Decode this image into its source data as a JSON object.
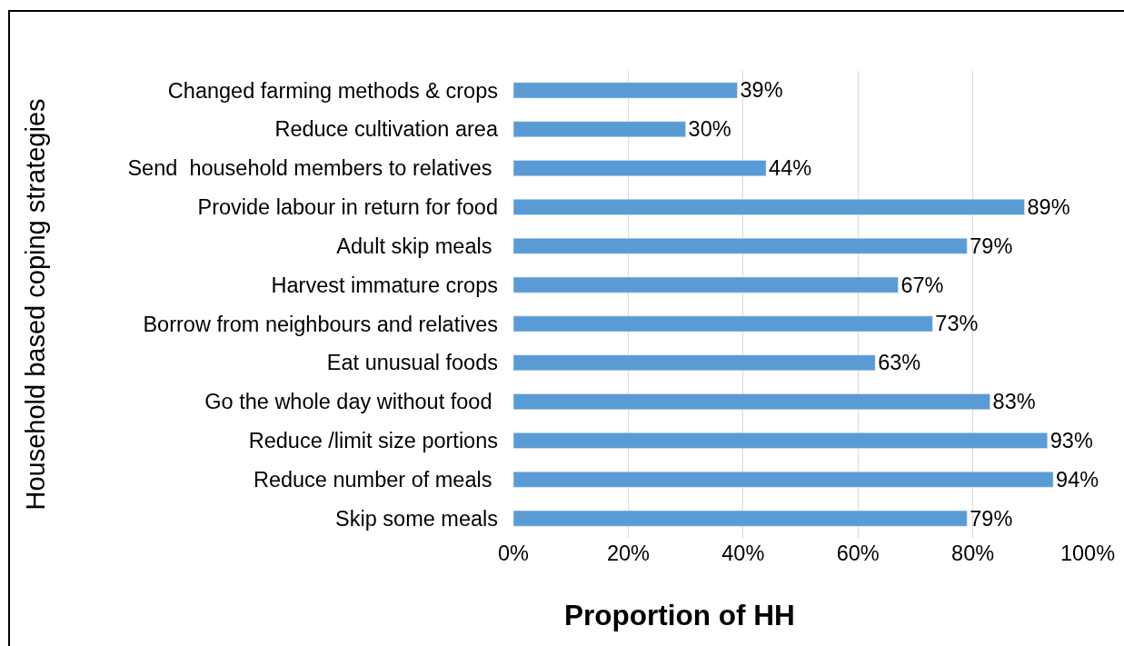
{
  "chart_data": {
    "type": "bar",
    "orientation": "horizontal",
    "categories": [
      "Changed farming methods & crops",
      "Reduce cultivation area",
      "Send  household members to relatives ",
      "Provide labour in return for food",
      "Adult skip meals ",
      "Harvest immature crops",
      "Borrow from neighbours and relatives",
      "Eat unusual foods",
      "Go the whole day without food ",
      "Reduce /limit size portions",
      "Reduce number of meals ",
      "Skip some meals"
    ],
    "values": [
      39,
      30,
      44,
      89,
      79,
      67,
      73,
      63,
      83,
      93,
      94,
      79
    ],
    "value_labels": [
      "39%",
      "30%",
      "44%",
      "89%",
      "79%",
      "67%",
      "73%",
      "63%",
      "83%",
      "93%",
      "94%",
      "79%"
    ],
    "color": "#5b9bd5",
    "xlabel": "Proportion of HH",
    "ylabel": "Household based coping strategies",
    "xlim": [
      0,
      100
    ],
    "xticks": [
      {
        "value": 0,
        "label": "0%"
      },
      {
        "value": 20,
        "label": "20%"
      },
      {
        "value": 40,
        "label": "40%"
      },
      {
        "value": 60,
        "label": "60%"
      },
      {
        "value": 80,
        "label": "80%"
      },
      {
        "value": 100,
        "label": "100%"
      }
    ],
    "grid": "x"
  }
}
